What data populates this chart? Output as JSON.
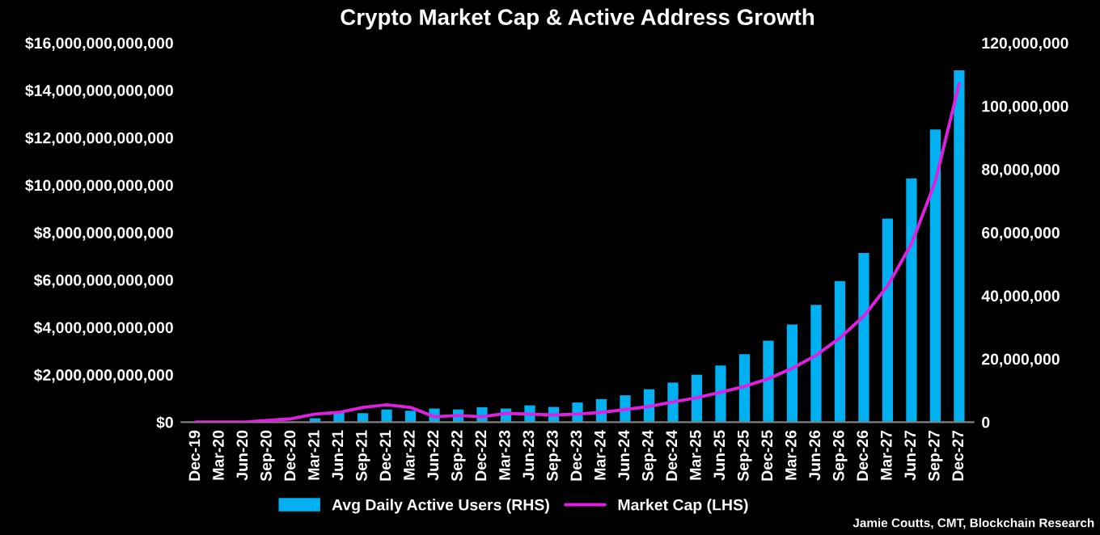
{
  "chart_data": {
    "type": "bar",
    "title": "Crypto Market Cap & Active Address Growth",
    "categories": [
      "Dec-19",
      "Mar-20",
      "Jun-20",
      "Sep-20",
      "Dec-20",
      "Mar-21",
      "Jun-21",
      "Sep-21",
      "Dec-21",
      "Mar-22",
      "Jun-22",
      "Sep-22",
      "Dec-22",
      "Mar-23",
      "Jun-23",
      "Sep-23",
      "Dec-23",
      "Mar-24",
      "Jun-24",
      "Sep-24",
      "Dec-24",
      "Mar-25",
      "Jun-25",
      "Sep-25",
      "Dec-25",
      "Mar-26",
      "Jun-26",
      "Sep-26",
      "Dec-26",
      "Mar-27",
      "Jun-27",
      "Sep-27",
      "Dec-27"
    ],
    "series": [
      {
        "name": "Avg Daily Active Users (RHS)",
        "axis": "y2",
        "color": "#00b0f0",
        "values": [
          0,
          0,
          0,
          null,
          null,
          1200000,
          2900000,
          2800000,
          4000000,
          3600000,
          4300000,
          4000000,
          4700000,
          4300000,
          5300000,
          4800000,
          6200000,
          7300000,
          8500000,
          10400000,
          12500000,
          15000000,
          17900000,
          21500000,
          25800000,
          30900000,
          37100000,
          44600000,
          53500000,
          64400000,
          77100000,
          92600000,
          111300000
        ]
      },
      {
        "name": "Market Cap (LHS)",
        "type": "line",
        "axis": "y",
        "color": "#e020e0",
        "values": [
          0,
          0,
          0,
          70000000000,
          140000000000,
          340000000000,
          410000000000,
          620000000000,
          730000000000,
          620000000000,
          230000000000,
          280000000000,
          230000000000,
          370000000000,
          340000000000,
          300000000000,
          340000000000,
          410000000000,
          530000000000,
          660000000000,
          850000000000,
          1030000000000,
          1260000000000,
          1510000000000,
          1830000000000,
          2270000000000,
          2820000000000,
          3550000000000,
          4470000000000,
          5750000000000,
          7520000000000,
          10150000000000,
          14280000000000
        ]
      }
    ],
    "ylim": [
      0,
      16000000000000
    ],
    "yticks": [
      {
        "value": 0,
        "label": "$0"
      },
      {
        "value": 2000000000000,
        "label": "$2,000,000,000,000"
      },
      {
        "value": 4000000000000,
        "label": "$4,000,000,000,000"
      },
      {
        "value": 6000000000000,
        "label": "$6,000,000,000,000"
      },
      {
        "value": 8000000000000,
        "label": "$8,000,000,000,000"
      },
      {
        "value": 10000000000000,
        "label": "$10,000,000,000,000"
      },
      {
        "value": 12000000000000,
        "label": "$12,000,000,000,000"
      },
      {
        "value": 14000000000000,
        "label": "$14,000,000,000,000"
      },
      {
        "value": 16000000000000,
        "label": "$16,000,000,000,000"
      }
    ],
    "y2lim": [
      0,
      120000000
    ],
    "y2ticks": [
      0,
      {
        "value": 20000000,
        "label": "20,000,000"
      },
      {
        "value": 40000000,
        "label": "40,000,000"
      },
      {
        "value": 60000000,
        "label": "60,000,000"
      },
      {
        "value": 80000000,
        "label": "80,000,000"
      },
      {
        "value": 100000000,
        "label": "100,000,000"
      },
      {
        "value": 120000000,
        "label": "120,000,000"
      }
    ],
    "grid": false,
    "legend": "bottom",
    "annotations": [
      "Jamie Coutts, CMT, Blockchain Research"
    ]
  }
}
